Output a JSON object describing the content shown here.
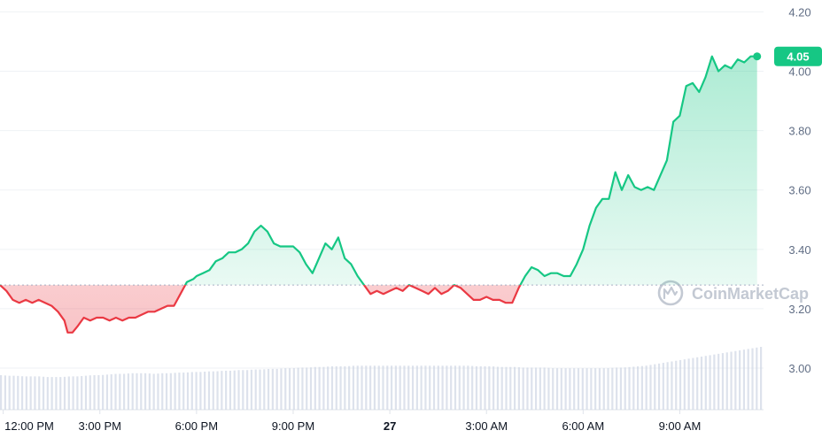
{
  "watermark": {
    "text": "CoinMarketCap",
    "icon": "coinmarketcap-logo"
  },
  "colors": {
    "up": "#16c784",
    "down": "#ea3943",
    "grid": "#eff2f5",
    "baseline": "#a6b0c3",
    "volume": "#cfd6e4",
    "axis_text": "#616e85"
  },
  "price_badge": {
    "label": "4.05",
    "value": 4.05
  },
  "chart_data": {
    "type": "line",
    "title": "",
    "xlabel": "",
    "ylabel": "",
    "ylim": [
      2.86,
      4.24
    ],
    "y_ticks": [
      3.0,
      3.2,
      3.4,
      3.6,
      3.8,
      4.0,
      4.2
    ],
    "y_tick_labels": [
      "3.00",
      "3.20",
      "3.40",
      "3.60",
      "3.80",
      "4.00",
      "4.20"
    ],
    "x_tick_labels": [
      "12:00 PM",
      "3:00 PM",
      "6:00 PM",
      "9:00 PM",
      "27",
      "3:00 AM",
      "6:00 AM",
      "9:00 AM"
    ],
    "x_tick_hours": [
      12,
      15,
      18,
      21,
      24,
      27,
      30,
      33
    ],
    "baseline_price": 3.28,
    "grid": true,
    "series": [
      {
        "x": [
          11.9,
          12.1,
          12.3,
          12.5,
          12.7,
          12.9,
          13.1,
          13.3,
          13.5,
          13.7,
          13.9,
          14.0,
          14.15,
          14.3,
          14.5,
          14.7,
          14.9,
          15.1,
          15.3,
          15.5,
          15.7,
          15.9,
          16.1,
          16.3,
          16.5,
          16.7,
          16.9,
          17.1,
          17.3,
          17.5,
          17.7,
          17.9,
          18.0,
          18.2,
          18.4,
          18.6,
          18.8,
          19.0,
          19.2,
          19.4,
          19.6,
          19.8,
          20.0,
          20.2,
          20.4,
          20.6,
          20.8,
          21.0,
          21.2,
          21.4,
          21.6,
          21.8,
          22.0,
          22.2,
          22.4,
          22.6,
          22.8,
          23.0,
          23.2,
          23.4,
          23.6,
          23.8,
          24.0,
          24.2,
          24.4,
          24.6,
          24.8,
          25.0,
          25.2,
          25.4,
          25.6,
          25.8,
          26.0,
          26.2,
          26.4,
          26.6,
          26.8,
          27.0,
          27.2,
          27.4,
          27.6,
          27.8,
          28.0,
          28.2,
          28.4,
          28.6,
          28.8,
          29.0,
          29.2,
          29.4,
          29.6,
          29.8,
          30.0,
          30.2,
          30.4,
          30.6,
          30.8,
          31.0,
          31.2,
          31.4,
          31.6,
          31.8,
          32.0,
          32.2,
          32.4,
          32.6,
          32.8,
          33.0,
          33.2,
          33.4,
          33.6,
          33.8,
          34.0,
          34.2,
          34.4,
          34.6,
          34.8,
          35.0,
          35.2,
          35.4
        ],
        "values": [
          3.28,
          3.26,
          3.23,
          3.22,
          3.23,
          3.22,
          3.23,
          3.22,
          3.21,
          3.19,
          3.16,
          3.12,
          3.12,
          3.14,
          3.17,
          3.16,
          3.17,
          3.17,
          3.16,
          3.17,
          3.16,
          3.17,
          3.17,
          3.18,
          3.19,
          3.19,
          3.2,
          3.21,
          3.21,
          3.25,
          3.29,
          3.3,
          3.31,
          3.32,
          3.33,
          3.36,
          3.37,
          3.39,
          3.39,
          3.4,
          3.42,
          3.46,
          3.48,
          3.46,
          3.42,
          3.41,
          3.41,
          3.41,
          3.39,
          3.35,
          3.32,
          3.37,
          3.42,
          3.4,
          3.44,
          3.37,
          3.35,
          3.31,
          3.28,
          3.25,
          3.26,
          3.25,
          3.26,
          3.27,
          3.26,
          3.28,
          3.27,
          3.26,
          3.25,
          3.27,
          3.25,
          3.26,
          3.28,
          3.27,
          3.25,
          3.23,
          3.23,
          3.24,
          3.23,
          3.23,
          3.22,
          3.22,
          3.27,
          3.31,
          3.34,
          3.33,
          3.31,
          3.32,
          3.32,
          3.31,
          3.31,
          3.35,
          3.4,
          3.48,
          3.54,
          3.57,
          3.57,
          3.66,
          3.6,
          3.65,
          3.61,
          3.6,
          3.61,
          3.6,
          3.65,
          3.7,
          3.83,
          3.85,
          3.95,
          3.96,
          3.93,
          3.98,
          4.05,
          4.0,
          4.02,
          4.01,
          4.04,
          4.03,
          4.05,
          4.05
        ]
      }
    ],
    "volume": [
      0.55,
      0.54,
      0.54,
      0.53,
      0.53,
      0.53,
      0.52,
      0.52,
      0.52,
      0.53,
      0.53,
      0.54,
      0.55,
      0.55,
      0.56,
      0.57,
      0.57,
      0.58,
      0.58,
      0.58,
      0.57,
      0.58,
      0.58,
      0.59,
      0.59,
      0.6,
      0.6,
      0.61,
      0.61,
      0.62,
      0.62,
      0.63,
      0.63,
      0.64,
      0.64,
      0.65,
      0.65,
      0.66,
      0.66,
      0.67,
      0.67,
      0.68,
      0.68,
      0.69,
      0.69,
      0.69,
      0.7,
      0.7,
      0.7,
      0.7,
      0.7,
      0.7,
      0.7,
      0.7,
      0.7,
      0.7,
      0.7,
      0.7,
      0.7,
      0.7,
      0.7,
      0.7,
      0.69,
      0.69,
      0.69,
      0.68,
      0.68,
      0.68,
      0.67,
      0.67,
      0.67,
      0.67,
      0.66,
      0.66,
      0.66,
      0.66,
      0.66,
      0.66,
      0.66,
      0.66,
      0.67,
      0.67,
      0.68,
      0.69,
      0.7,
      0.72,
      0.74,
      0.76,
      0.78,
      0.8,
      0.82,
      0.84,
      0.86,
      0.88,
      0.9,
      0.92,
      0.94,
      0.96,
      0.98,
      1.0
    ]
  }
}
